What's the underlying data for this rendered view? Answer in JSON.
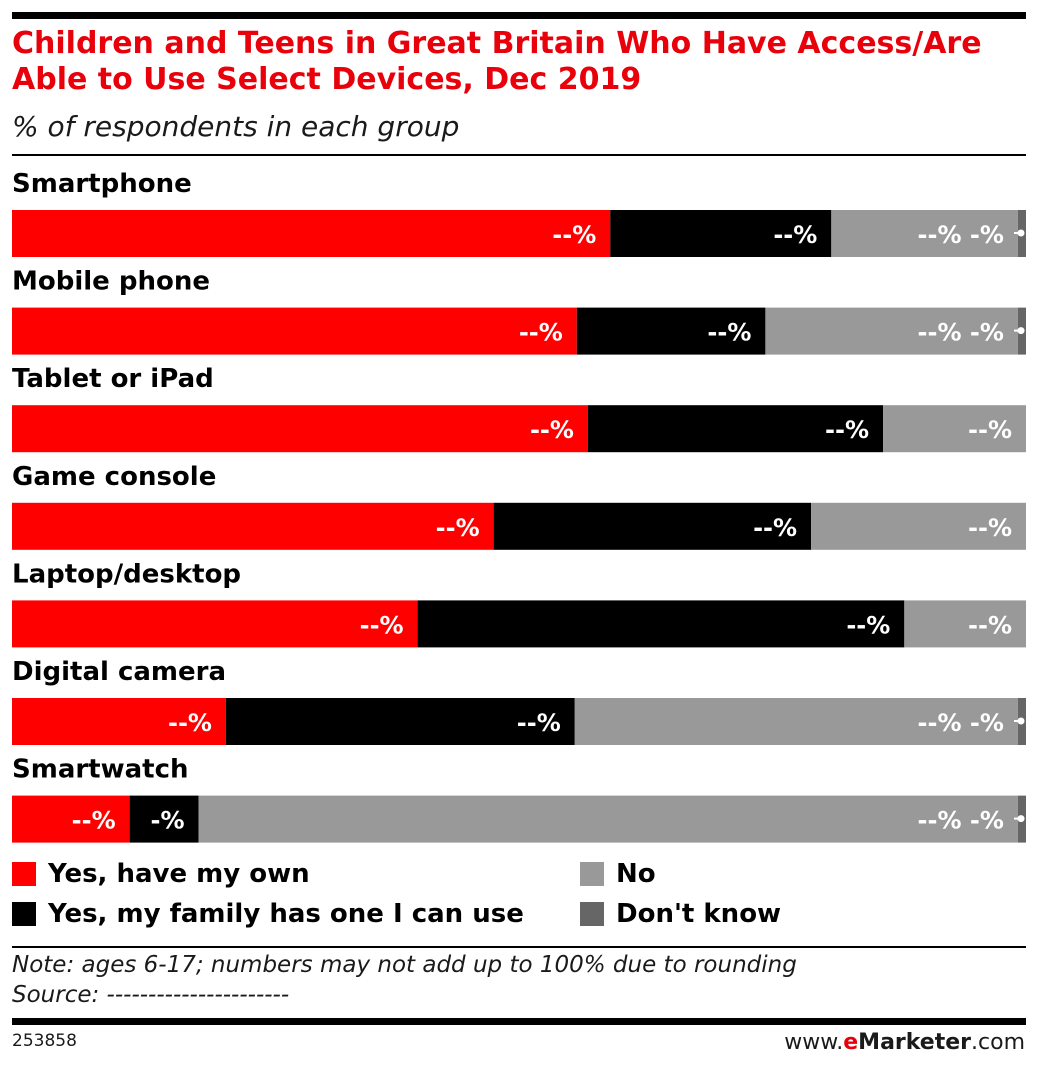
{
  "title": "Children and Teens in Great Britain Who Have Access/Are Able to Use Select Devices, Dec 2019",
  "subtitle": "% of respondents in each group",
  "note": "Note: ages 6-17; numbers may not add up to 100% due to rounding",
  "source": "Source: ----------------------",
  "chart_id": "253858",
  "brand": {
    "prefix": "www.",
    "e": "e",
    "name": "Marketer",
    "suffix": ".com"
  },
  "colors": {
    "own": "#ff0000",
    "family": "#000000",
    "no": "#999999",
    "dont_know": "#666666",
    "title": "#e8000b"
  },
  "chart_data": {
    "type": "bar",
    "orientation": "horizontal",
    "stacked": true,
    "categories": [
      "Smartphone",
      "Mobile phone",
      "Tablet or iPad",
      "Game console",
      "Laptop/desktop",
      "Digital camera",
      "Smartwatch"
    ],
    "series": [
      {
        "name": "Yes, have my own",
        "color": "#ff0000",
        "values": [
          59,
          55.7,
          56.8,
          47.5,
          40,
          21.1,
          11.6
        ],
        "labels": [
          "--%",
          "--%",
          "--%",
          "--%",
          "--%",
          "--%",
          "--%"
        ]
      },
      {
        "name": "Yes, my family has one I can use",
        "color": "#000000",
        "values": [
          21.8,
          18.6,
          29.1,
          31.3,
          48,
          34.4,
          6.8
        ],
        "labels": [
          "--%",
          "--%",
          "--%",
          "--%",
          "--%",
          "--%",
          "-%"
        ]
      },
      {
        "name": "No",
        "color": "#999999",
        "values": [
          18.4,
          24.9,
          14.1,
          21.2,
          12,
          43.7,
          80.8
        ],
        "labels": [
          "--% -%",
          "--% -%",
          "--%",
          "--%",
          "--%",
          "--% -%",
          "--% -%"
        ]
      },
      {
        "name": "Don't know",
        "color": "#666666",
        "values": [
          0.8,
          0.8,
          0,
          0,
          0,
          0.8,
          0.8
        ],
        "labels": [
          "",
          "",
          "",
          "",
          "",
          "",
          ""
        ]
      }
    ],
    "xlim": [
      0,
      100
    ],
    "legend": "bottom"
  },
  "legend": [
    {
      "label": "Yes, have my own",
      "color": "#ff0000"
    },
    {
      "label": "Yes, my family has one I can use",
      "color": "#000000"
    },
    {
      "label": "No",
      "color": "#999999"
    },
    {
      "label": "Don't know",
      "color": "#666666"
    }
  ]
}
